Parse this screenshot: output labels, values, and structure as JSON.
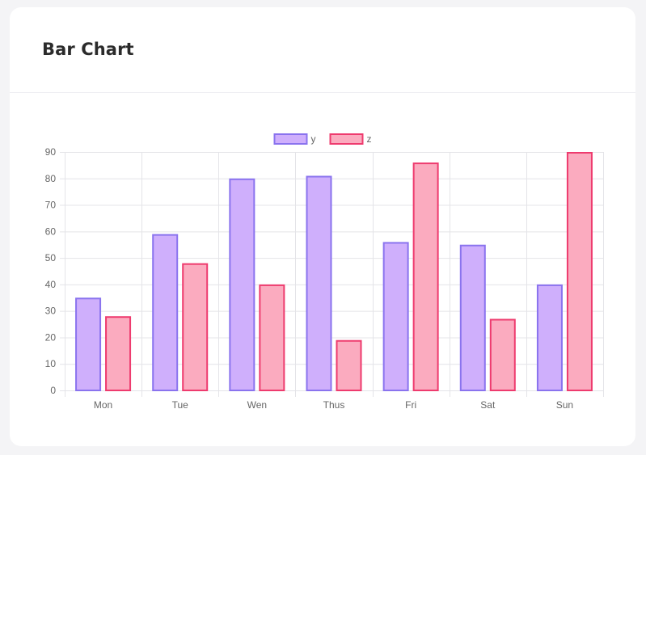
{
  "card": {
    "title": "Bar Chart"
  },
  "chart_data": {
    "type": "bar",
    "categories": [
      "Mon",
      "Tue",
      "Wen",
      "Thus",
      "Fri",
      "Sat",
      "Sun"
    ],
    "series": [
      {
        "name": "y",
        "values": [
          35,
          59,
          80,
          81,
          56,
          55,
          40
        ],
        "fill": "#cfaffc",
        "stroke": "#8a73ee"
      },
      {
        "name": "z",
        "values": [
          28,
          48,
          40,
          19,
          86,
          27,
          90
        ],
        "fill": "#fbabbf",
        "stroke": "#ee3b6e"
      }
    ],
    "yticks": [
      "0",
      "10",
      "20",
      "30",
      "40",
      "50",
      "60",
      "70",
      "80",
      "90"
    ],
    "ylim": [
      0,
      90
    ],
    "grid": true,
    "legend": "top-center"
  }
}
